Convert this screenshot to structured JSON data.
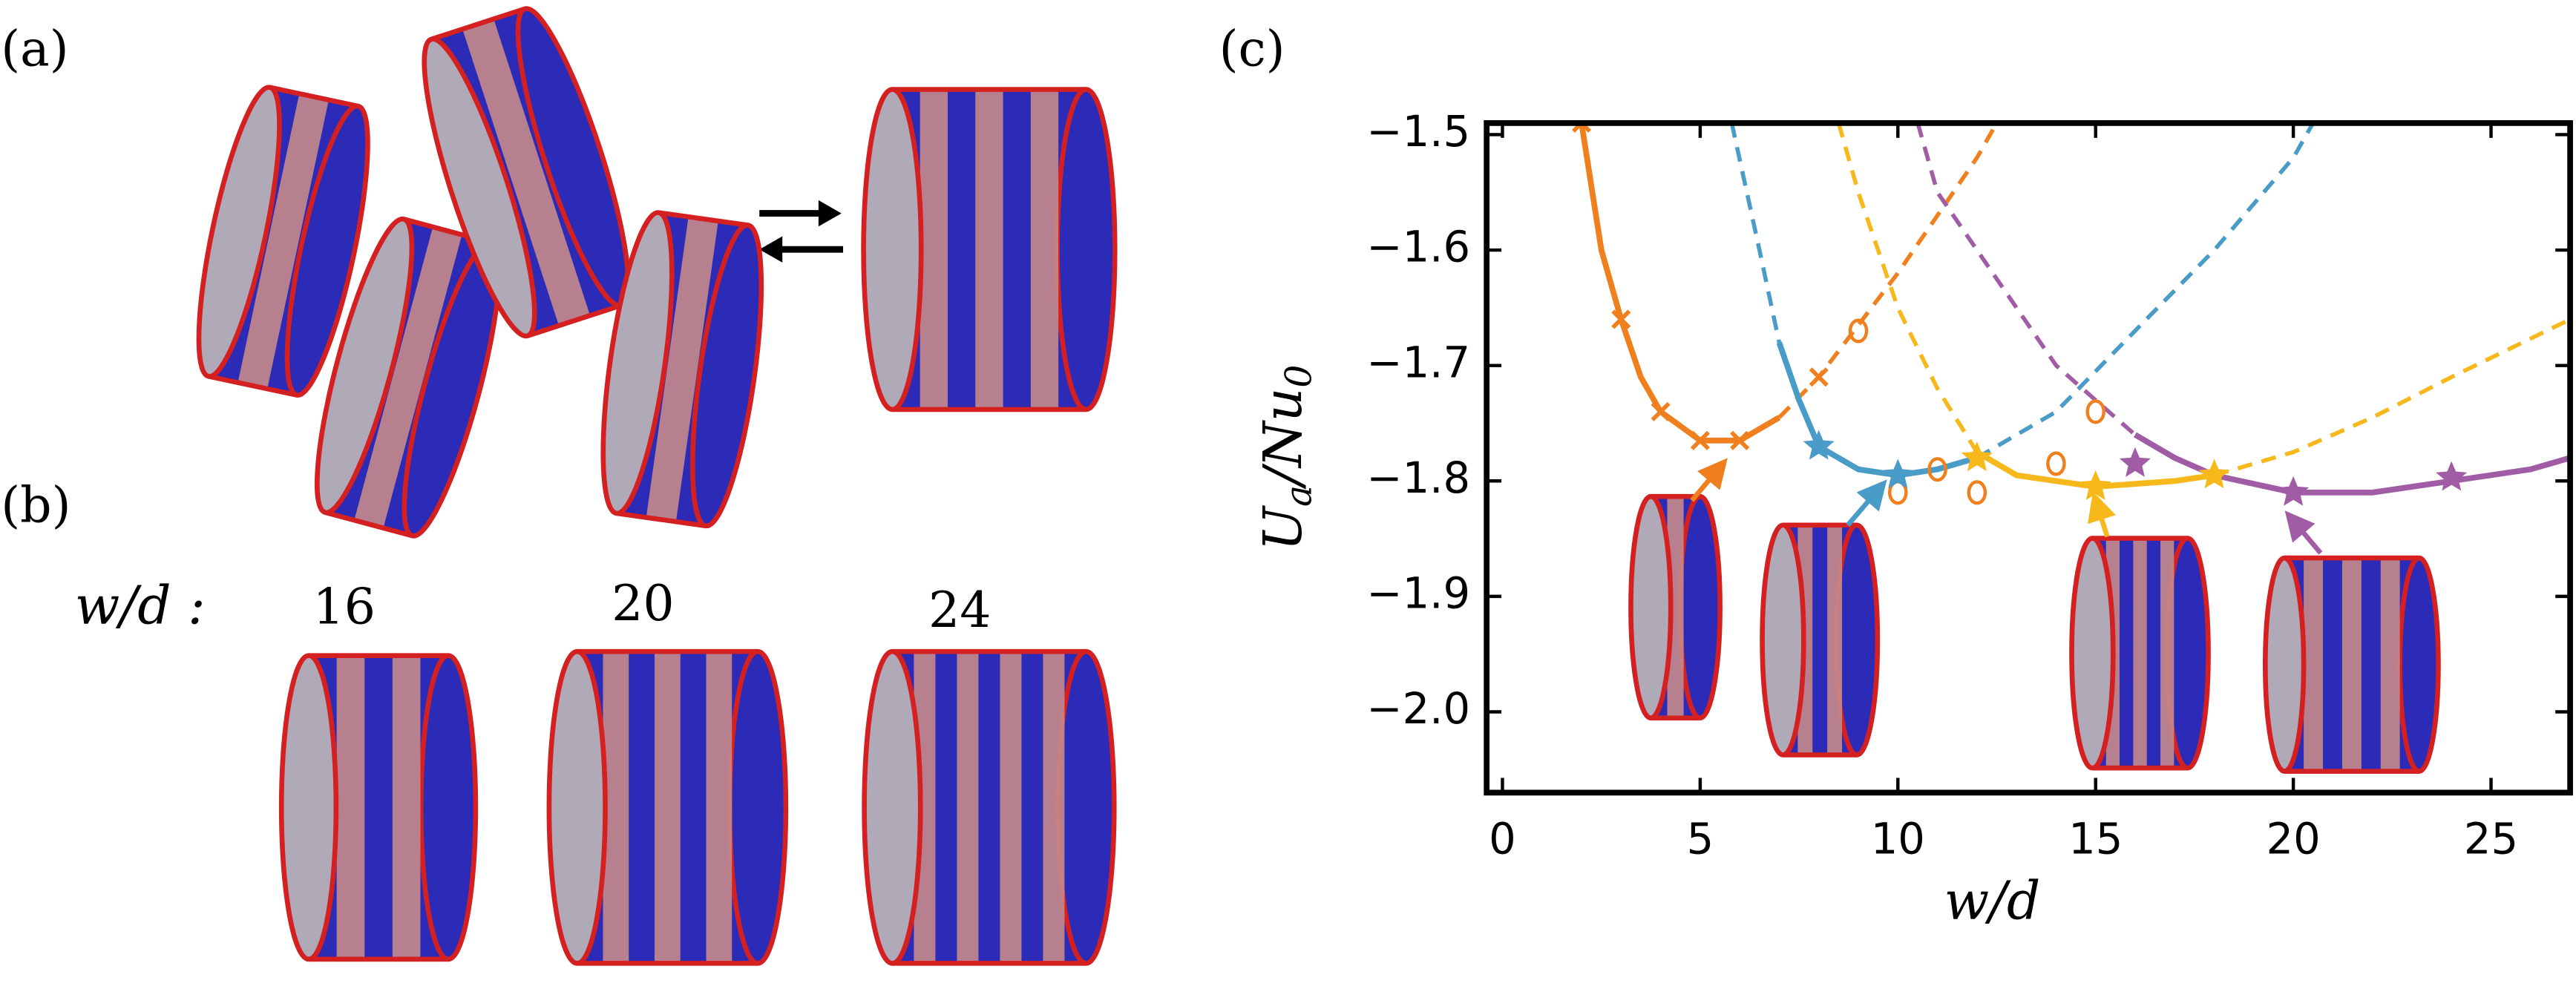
{
  "panel_labels": [
    "(a)",
    "(b)",
    "(c)"
  ],
  "panel_b": {
    "label": "w/d :",
    "widths": [
      "16",
      "20",
      "24"
    ]
  },
  "chart_data": {
    "type": "line",
    "xlabel": "w/d",
    "ylabel": [
      "U",
      "a",
      "/Nu",
      "0"
    ],
    "xlim": [
      -0.4,
      27
    ],
    "ylim": [
      -2.07,
      -1.49
    ],
    "xticks": [
      0,
      5,
      10,
      15,
      20,
      25
    ],
    "yticks": [
      {
        "value": -1.5,
        "label": "−1.5"
      },
      {
        "value": -1.6,
        "label": "−1.6"
      },
      {
        "value": -1.7,
        "label": "−1.7"
      },
      {
        "value": -1.8,
        "label": "−1.8"
      },
      {
        "value": -1.9,
        "label": "−1.9"
      },
      {
        "value": -2.0,
        "label": "−2.0"
      }
    ],
    "curves": [
      {
        "color": "#f07f1e",
        "dashed": false,
        "x": [
          2,
          2.5,
          3,
          3.5,
          4,
          5,
          6,
          7
        ],
        "values": [
          -1.49,
          -1.6,
          -1.66,
          -1.71,
          -1.74,
          -1.765,
          -1.765,
          -1.745
        ]
      },
      {
        "color": "#f07f1e",
        "dashed": true,
        "x": [
          7,
          8,
          9,
          10,
          11,
          12,
          12.5
        ],
        "values": [
          -1.745,
          -1.71,
          -1.665,
          -1.62,
          -1.57,
          -1.52,
          -1.49
        ]
      },
      {
        "color": "#4a9cc8",
        "dashed": true,
        "x": [
          5.8,
          6.5,
          7
        ],
        "values": [
          -1.49,
          -1.6,
          -1.68
        ]
      },
      {
        "color": "#4a9cc8",
        "dashed": false,
        "x": [
          7,
          7.5,
          8,
          9,
          10,
          11,
          12
        ],
        "values": [
          -1.68,
          -1.73,
          -1.77,
          -1.79,
          -1.795,
          -1.79,
          -1.78
        ]
      },
      {
        "color": "#4a9cc8",
        "dashed": true,
        "x": [
          12,
          14,
          16,
          18,
          20,
          20.5
        ],
        "values": [
          -1.78,
          -1.74,
          -1.67,
          -1.6,
          -1.52,
          -1.49
        ]
      },
      {
        "color": "#f7b81c",
        "dashed": true,
        "x": [
          8.5,
          9,
          10,
          11,
          12
        ],
        "values": [
          -1.49,
          -1.55,
          -1.65,
          -1.72,
          -1.775
        ]
      },
      {
        "color": "#f7b81c",
        "dashed": false,
        "x": [
          12,
          13,
          15,
          17,
          18
        ],
        "values": [
          -1.775,
          -1.795,
          -1.805,
          -1.8,
          -1.795
        ]
      },
      {
        "color": "#f7b81c",
        "dashed": true,
        "x": [
          18,
          20,
          22,
          24,
          27
        ],
        "values": [
          -1.795,
          -1.775,
          -1.745,
          -1.71,
          -1.66
        ]
      },
      {
        "color": "#a15ca6",
        "dashed": true,
        "x": [
          10.5,
          11,
          12,
          13,
          14,
          15,
          16
        ],
        "values": [
          -1.49,
          -1.55,
          -1.6,
          -1.65,
          -1.7,
          -1.73,
          -1.76
        ]
      },
      {
        "color": "#a15ca6",
        "dashed": false,
        "x": [
          16,
          17,
          18,
          20,
          22,
          24,
          26,
          27
        ],
        "values": [
          -1.76,
          -1.78,
          -1.795,
          -1.81,
          -1.81,
          -1.8,
          -1.79,
          -1.78
        ]
      }
    ],
    "markers": [
      {
        "marker": "x",
        "color": "#f07f1e",
        "x": [
          2,
          3,
          4,
          5,
          6,
          8
        ],
        "values": [
          -1.49,
          -1.66,
          -1.74,
          -1.765,
          -1.765,
          -1.71
        ]
      },
      {
        "marker": "o",
        "color": "#f07f1e",
        "x": [
          9,
          10,
          11,
          12,
          14,
          15
        ],
        "values": [
          -1.67,
          -1.81,
          -1.79,
          -1.81,
          -1.785,
          -1.74
        ]
      },
      {
        "marker": "star",
        "color": "#4a9cc8",
        "x": [
          8,
          10
        ],
        "values": [
          -1.77,
          -1.795
        ]
      },
      {
        "marker": "star",
        "color": "#f7b81c",
        "x": [
          12,
          15,
          18
        ],
        "values": [
          -1.78,
          -1.805,
          -1.795
        ]
      },
      {
        "marker": "star",
        "color": "#a15ca6",
        "x": [
          16,
          20,
          24
        ],
        "values": [
          -1.785,
          -1.81,
          -1.797
        ]
      }
    ]
  }
}
